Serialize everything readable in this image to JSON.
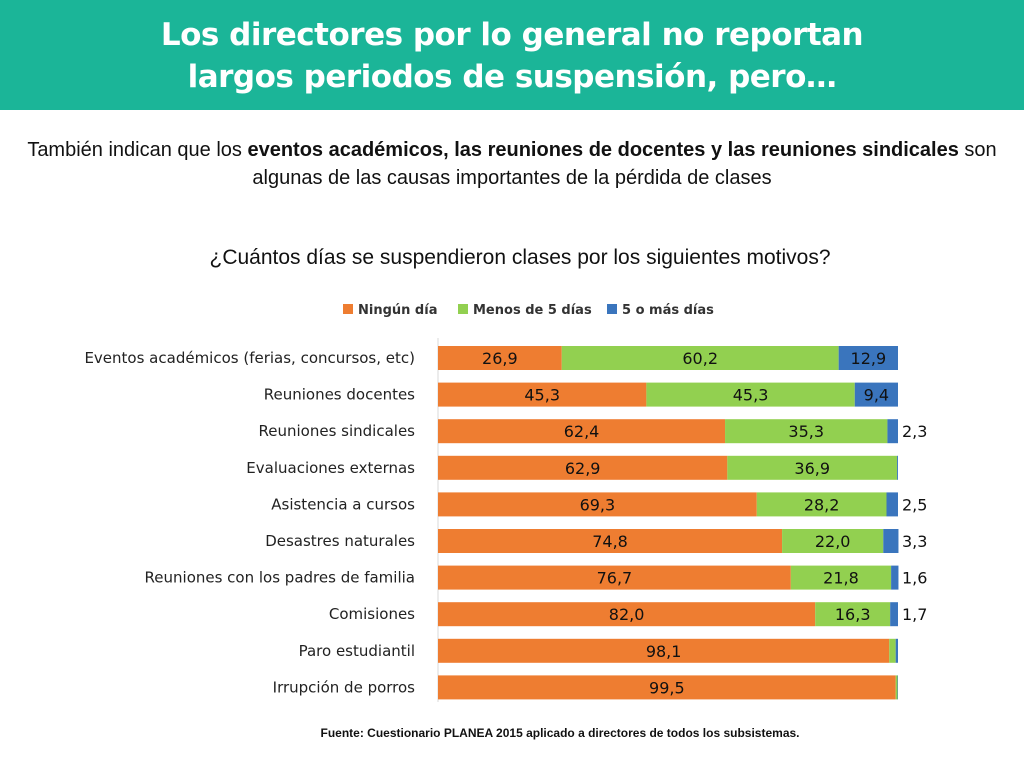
{
  "header": {
    "title_line1": "Los directores por lo general no reportan",
    "title_line2": "largos periodos de suspensión, pero…"
  },
  "subtitle": {
    "prefix": "También indican que los ",
    "bold": "eventos académicos, las reuniones de docentes y las reuniones sindicales",
    "suffix": " son algunas de las causas importantes de la pérdida de clases"
  },
  "source": "Fuente: Cuestionario PLANEA 2015 aplicado a directores de todos los subsistemas.",
  "colors": {
    "banner": "#1bb598",
    "series": [
      "#ee7d31",
      "#92d050",
      "#3a75bd"
    ]
  },
  "chart_data": {
    "type": "bar",
    "orientation": "horizontal",
    "stacked": true,
    "title": "¿Cuántos días se suspendieron clases por los siguientes motivos?",
    "xlim": [
      0,
      100
    ],
    "legend_position": "top",
    "categories": [
      "Eventos académicos (ferias, concursos, etc)",
      "Reuniones docentes",
      "Reuniones sindicales",
      "Evaluaciones externas",
      "Asistencia a cursos",
      "Desastres naturales",
      "Reuniones con los padres de familia",
      "Comisiones",
      "Paro estudiantil",
      "Irrupción de porros"
    ],
    "series": [
      {
        "name": "Ningún día",
        "values": [
          26.9,
          45.3,
          62.4,
          62.9,
          69.3,
          74.8,
          76.7,
          82.0,
          98.1,
          99.5
        ],
        "labels": [
          "26,9",
          "45,3",
          "62,4",
          "62,9",
          "69,3",
          "74,8",
          "76,7",
          "82,0",
          "98,1",
          "99,5"
        ]
      },
      {
        "name": "Menos de 5 días",
        "values": [
          60.2,
          45.3,
          35.3,
          36.9,
          28.2,
          22.0,
          21.8,
          16.3,
          1.4,
          0.4
        ],
        "labels": [
          "60,2",
          "45,3",
          "35,3",
          "36,9",
          "28,2",
          "22,0",
          "21,8",
          "16,3",
          null,
          null
        ]
      },
      {
        "name": "5 o más días",
        "values": [
          12.9,
          9.4,
          2.3,
          0.2,
          2.5,
          3.3,
          1.6,
          1.7,
          0.5,
          0.1
        ],
        "labels": [
          "12,9",
          "9,4",
          "2,3",
          null,
          "2,5",
          "3,3",
          "1,6",
          "1,7",
          null,
          null
        ]
      }
    ]
  }
}
